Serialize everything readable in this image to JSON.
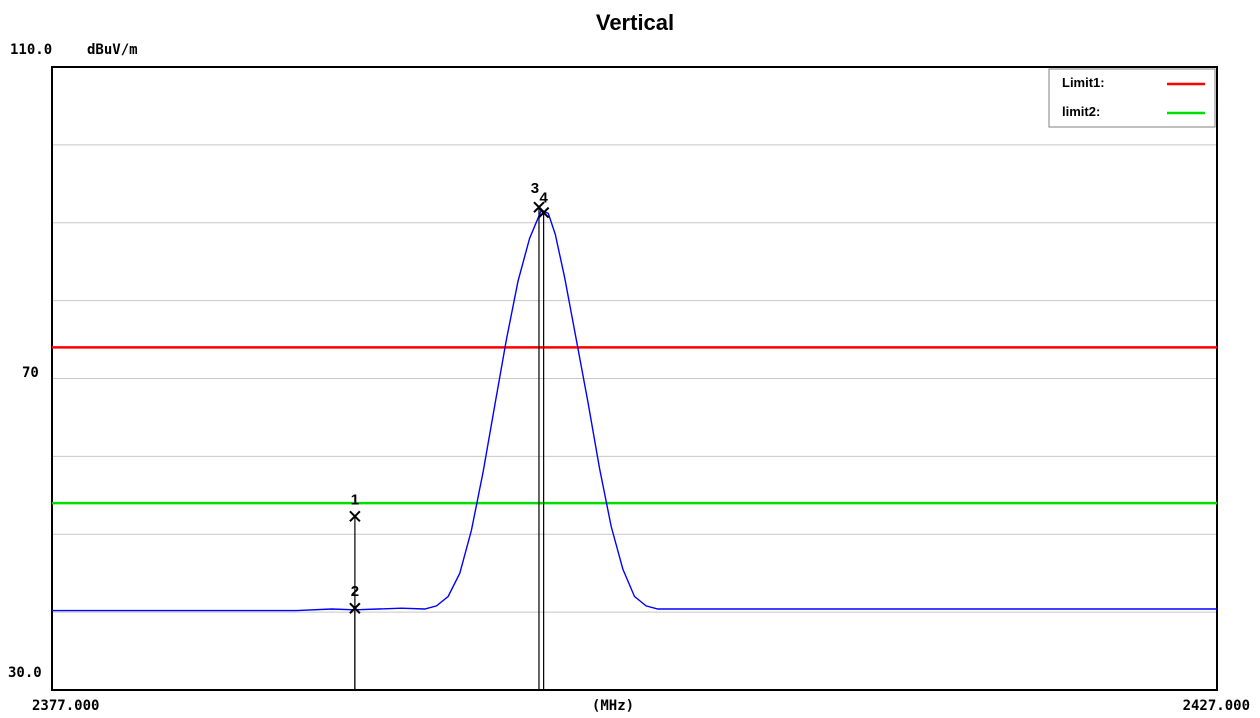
{
  "chart_data": {
    "type": "line",
    "title": "Vertical",
    "y_unit": "dBuV/m",
    "x_unit": "(MHz)",
    "xlim": [
      2377.0,
      2427.0
    ],
    "ylim": [
      30.0,
      110.0
    ],
    "x_tick_labels": [
      "2377.000",
      "2427.000"
    ],
    "y_tick_labels": [
      "110.0",
      "70",
      "30.0"
    ],
    "y_gridlines": [
      40,
      50,
      60,
      70,
      80,
      90,
      100
    ],
    "grid": true,
    "legend_position": "top-right",
    "limits": [
      {
        "name": "Limit1:",
        "value": 74,
        "color": "#ff0000"
      },
      {
        "name": "limit2:",
        "value": 54,
        "color": "#00dd00"
      }
    ],
    "series": [
      {
        "color": "#0000ff",
        "points": [
          [
            2377.0,
            40.2
          ],
          [
            2383.0,
            40.2
          ],
          [
            2386.0,
            40.2
          ],
          [
            2387.5,
            40.2
          ],
          [
            2389.0,
            40.4
          ],
          [
            2390.0,
            40.3
          ],
          [
            2391.0,
            40.4
          ],
          [
            2392.0,
            40.5
          ],
          [
            2393.0,
            40.4
          ],
          [
            2393.5,
            40.8
          ],
          [
            2394.0,
            42.0
          ],
          [
            2394.5,
            45.0
          ],
          [
            2395.0,
            50.5
          ],
          [
            2395.5,
            58.0
          ],
          [
            2396.0,
            66.5
          ],
          [
            2396.5,
            75.0
          ],
          [
            2397.0,
            82.5
          ],
          [
            2397.5,
            88.0
          ],
          [
            2398.0,
            91.6
          ],
          [
            2398.3,
            91.2
          ],
          [
            2398.6,
            88.5
          ],
          [
            2399.0,
            83.0
          ],
          [
            2399.5,
            75.0
          ],
          [
            2400.0,
            67.0
          ],
          [
            2400.5,
            58.5
          ],
          [
            2401.0,
            51.0
          ],
          [
            2401.5,
            45.5
          ],
          [
            2402.0,
            42.0
          ],
          [
            2402.5,
            40.8
          ],
          [
            2403.0,
            40.4
          ],
          [
            2405.0,
            40.4
          ],
          [
            2410.0,
            40.4
          ],
          [
            2415.0,
            40.4
          ],
          [
            2420.0,
            40.4
          ],
          [
            2427.0,
            40.4
          ]
        ]
      }
    ],
    "markers": [
      {
        "label": "1",
        "x": 2390.0,
        "y": 52.3
      },
      {
        "label": "2",
        "x": 2390.0,
        "y": 40.5
      },
      {
        "label": "3",
        "x": 2397.9,
        "y": 92.0
      },
      {
        "label": "4",
        "x": 2398.1,
        "y": 91.3
      }
    ]
  }
}
